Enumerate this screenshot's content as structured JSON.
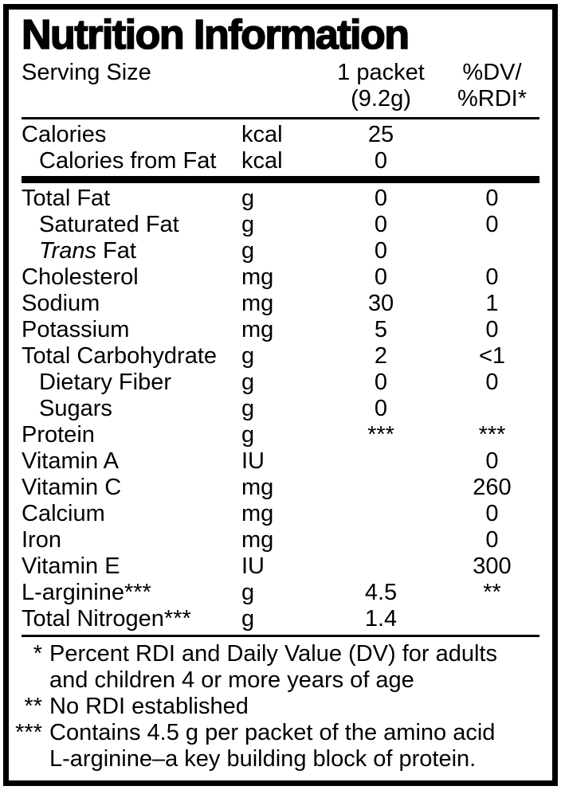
{
  "title": "Nutrition Information",
  "header": {
    "serving_label": "Serving Size",
    "serving_value_lines": [
      "1 packet",
      "(9.2g)"
    ],
    "dv_heading_lines": [
      "%DV/",
      "%RDI*"
    ]
  },
  "calorie_rows": [
    {
      "name": "Calories",
      "unit": "kcal",
      "amount": "25",
      "dv": "",
      "indent": false
    },
    {
      "name": "Calories from Fat",
      "unit": "kcal",
      "amount": "0",
      "dv": "",
      "indent": true
    }
  ],
  "nutrient_rows": [
    {
      "name": "Total Fat",
      "unit": "g",
      "amount": "0",
      "dv": "0",
      "indent": false
    },
    {
      "name": "Saturated Fat",
      "unit": "g",
      "amount": "0",
      "dv": "0",
      "indent": true
    },
    {
      "name_italic": "Trans",
      "name": " Fat",
      "unit": "g",
      "amount": "0",
      "dv": "",
      "indent": true
    },
    {
      "name": "Cholesterol",
      "unit": "mg",
      "amount": "0",
      "dv": "0",
      "indent": false
    },
    {
      "name": "Sodium",
      "unit": "mg",
      "amount": "30",
      "dv": "1",
      "indent": false
    },
    {
      "name": "Potassium",
      "unit": "mg",
      "amount": "5",
      "dv": "0",
      "indent": false
    },
    {
      "name": "Total Carbohydrate",
      "unit": "g",
      "amount": "2",
      "dv": "<1",
      "indent": false
    },
    {
      "name": "Dietary Fiber",
      "unit": "g",
      "amount": "0",
      "dv": "0",
      "indent": true
    },
    {
      "name": "Sugars",
      "unit": "g",
      "amount": "0",
      "dv": "",
      "indent": true
    },
    {
      "name": "Protein",
      "unit": "g",
      "amount": "***",
      "dv": "***",
      "indent": false
    },
    {
      "name": "Vitamin A",
      "unit": "IU",
      "amount": "",
      "dv": "0",
      "indent": false
    },
    {
      "name": "Vitamin C",
      "unit": "mg",
      "amount": "",
      "dv": "260",
      "indent": false
    },
    {
      "name": "Calcium",
      "unit": "mg",
      "amount": "",
      "dv": "0",
      "indent": false
    },
    {
      "name": "Iron",
      "unit": "mg",
      "amount": "",
      "dv": "0",
      "indent": false
    },
    {
      "name": "Vitamin E",
      "unit": "IU",
      "amount": "",
      "dv": "300",
      "indent": false
    },
    {
      "name": "L-arginine***",
      "unit": "g",
      "amount": "4.5",
      "dv": "**",
      "indent": false
    },
    {
      "name": "Total Nitrogen***",
      "unit": "g",
      "amount": "1.4",
      "dv": "",
      "indent": false
    }
  ],
  "footnotes": [
    {
      "marker": "*",
      "lines": [
        "Percent RDI and Daily Value (DV) for adults",
        "and children 4 or more years of age"
      ]
    },
    {
      "marker": "**",
      "lines": [
        "No RDI established"
      ]
    },
    {
      "marker": "***",
      "lines": [
        "Contains 4.5 g per packet of the amino acid",
        "L-arginine–a key building block of protein."
      ]
    }
  ]
}
